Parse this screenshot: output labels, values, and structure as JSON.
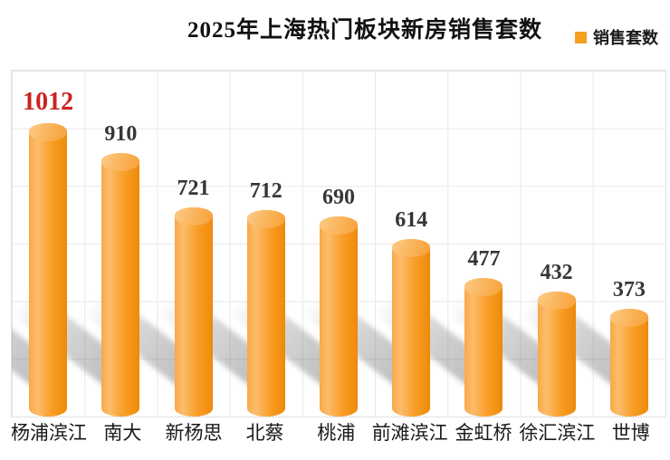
{
  "header": {
    "title": "2025年上海热门板块新房销售套数",
    "legend": {
      "label": "销售套数",
      "swatch_color": "#F5A01E"
    }
  },
  "chart_data": {
    "type": "bar",
    "bar_style": "3d-cylinder",
    "title": "2025年上海热门板块新房销售套数",
    "series_name": "销售套数",
    "categories": [
      "杨浦滨江",
      "南大",
      "新杨思",
      "北蔡",
      "桃浦",
      "前滩滨江",
      "金虹桥",
      "徐汇滨江",
      "世博"
    ],
    "values": [
      1012,
      910,
      721,
      712,
      690,
      614,
      477,
      432,
      373
    ],
    "xlabel": "",
    "ylabel": "",
    "ylim": [
      0,
      1200
    ],
    "y_gridline_step": 200,
    "grid": true,
    "legend_position": "top-right",
    "bar_color": "#F79A24",
    "value_label_color": "#363636",
    "highlighted_value": {
      "index": 0,
      "value": 1012,
      "color": "#CC2222"
    }
  }
}
